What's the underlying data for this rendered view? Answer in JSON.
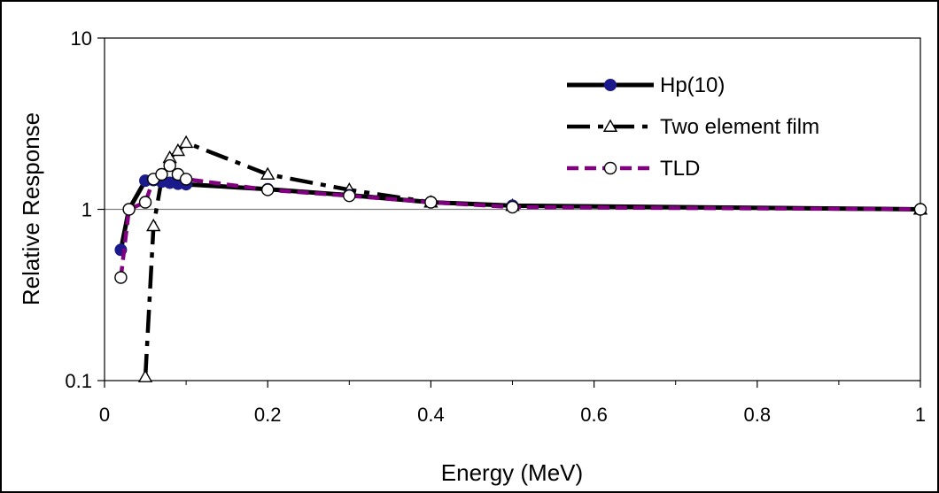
{
  "chart_data": {
    "type": "line",
    "title": "",
    "xlabel": "Energy (MeV)",
    "ylabel": "Relative Response",
    "xlim": [
      0,
      1
    ],
    "ylim": [
      0.1,
      10
    ],
    "y_scale": "log",
    "x_ticks": [
      0,
      0.2,
      0.4,
      0.6,
      0.8,
      1
    ],
    "x_tick_labels": [
      "0",
      "0.2",
      "0.4",
      "0.6",
      "0.8",
      "1"
    ],
    "y_ticks": [
      0.1,
      1,
      10
    ],
    "y_tick_labels": [
      "0.1",
      "1",
      "10"
    ],
    "grid": "horizontal-major",
    "legend_position": "top-right",
    "series": [
      {
        "name": "Hp(10)",
        "line_style": "solid",
        "line_color": "#000000",
        "marker": "filled-circle",
        "marker_color": "#1a1a8c",
        "x": [
          0.02,
          0.03,
          0.05,
          0.06,
          0.07,
          0.08,
          0.09,
          0.1,
          0.2,
          0.3,
          0.4,
          0.5,
          1
        ],
        "y": [
          0.58,
          1.0,
          1.47,
          1.48,
          1.45,
          1.43,
          1.41,
          1.4,
          1.31,
          1.21,
          1.1,
          1.05,
          1.0
        ]
      },
      {
        "name": "Two element film",
        "line_style": "dash-dot",
        "line_color": "#000000",
        "marker": "open-triangle",
        "marker_color": "#000000",
        "x": [
          0.05,
          0.06,
          0.07,
          0.08,
          0.09,
          0.1,
          0.2,
          0.3,
          0.4,
          0.5,
          1
        ],
        "y": [
          0.105,
          0.8,
          1.5,
          2.0,
          2.2,
          2.45,
          1.6,
          1.3,
          1.1,
          1.05,
          1.0
        ]
      },
      {
        "name": "TLD",
        "line_style": "dashed",
        "line_color": "#800080",
        "marker": "open-circle",
        "marker_color": "#000000",
        "x": [
          0.02,
          0.03,
          0.05,
          0.06,
          0.07,
          0.08,
          0.09,
          0.1,
          0.2,
          0.3,
          0.4,
          0.5,
          1
        ],
        "y": [
          0.4,
          1.0,
          1.1,
          1.5,
          1.6,
          1.8,
          1.6,
          1.5,
          1.3,
          1.2,
          1.1,
          1.03,
          1.0
        ]
      }
    ]
  }
}
